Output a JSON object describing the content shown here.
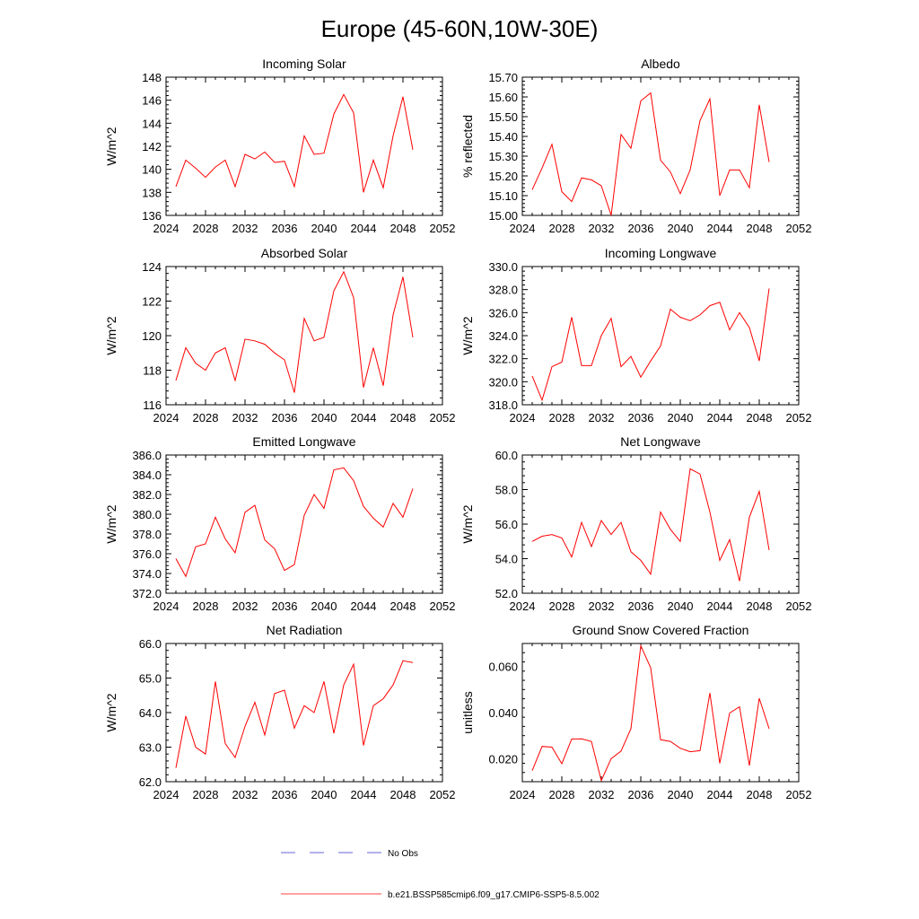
{
  "figure": {
    "title": "Europe (45-60N,10W-30E)"
  },
  "legend": {
    "items": [
      {
        "label": "No Obs",
        "color": "#3333cc",
        "style": "dashed"
      },
      {
        "label": "b.e21.BSSP585cmip6.f09_g17.CMIP6-SSP5-8.5.002",
        "color": "#ff0000",
        "style": "solid"
      }
    ]
  },
  "chart_data": [
    {
      "type": "line",
      "title": "Incoming Solar",
      "ylabel": "W/m^2",
      "xlim": [
        2024,
        2052
      ],
      "ylim": [
        136,
        148
      ],
      "xticks": [
        "2024",
        "2028",
        "2032",
        "2036",
        "2040",
        "2044",
        "2048",
        "2052"
      ],
      "yticks": [
        "136",
        "138",
        "140",
        "142",
        "144",
        "146",
        "148"
      ],
      "x": [
        2025,
        2026,
        2027,
        2028,
        2029,
        2030,
        2031,
        2032,
        2033,
        2034,
        2035,
        2036,
        2037,
        2038,
        2039,
        2040,
        2041,
        2042,
        2043,
        2044,
        2045,
        2046,
        2047,
        2048,
        2049
      ],
      "series": [
        {
          "name": "b.e21.BSSP585cmip6.f09_g17.CMIP6-SSP5-8.5.002",
          "color": "#ff0000",
          "values": [
            138.5,
            140.8,
            140.1,
            139.3,
            140.2,
            140.8,
            138.5,
            141.3,
            140.9,
            141.5,
            140.6,
            140.7,
            138.5,
            142.9,
            141.3,
            141.4,
            144.8,
            146.5,
            144.9,
            138.0,
            140.8,
            138.4,
            142.9,
            146.3,
            141.7
          ]
        }
      ]
    },
    {
      "type": "line",
      "title": "Albedo",
      "ylabel": "% reflected",
      "xlim": [
        2024,
        2052
      ],
      "ylim": [
        15.0,
        15.7
      ],
      "xticks": [
        "2024",
        "2028",
        "2032",
        "2036",
        "2040",
        "2044",
        "2048",
        "2052"
      ],
      "yticks": [
        "15.00",
        "15.10",
        "15.20",
        "15.30",
        "15.40",
        "15.50",
        "15.60",
        "15.70"
      ],
      "x": [
        2025,
        2026,
        2027,
        2028,
        2029,
        2030,
        2031,
        2032,
        2033,
        2034,
        2035,
        2036,
        2037,
        2038,
        2039,
        2040,
        2041,
        2042,
        2043,
        2044,
        2045,
        2046,
        2047,
        2048,
        2049
      ],
      "series": [
        {
          "name": "b.e21.BSSP585cmip6.f09_g17.CMIP6-SSP5-8.5.002",
          "color": "#ff0000",
          "values": [
            15.13,
            15.24,
            15.36,
            15.12,
            15.07,
            15.19,
            15.18,
            15.15,
            15.0,
            15.41,
            15.34,
            15.58,
            15.62,
            15.28,
            15.22,
            15.11,
            15.23,
            15.48,
            15.59,
            15.1,
            15.23,
            15.23,
            15.14,
            15.56,
            15.27
          ]
        }
      ]
    },
    {
      "type": "line",
      "title": "Absorbed Solar",
      "ylabel": "W/m^2",
      "xlim": [
        2024,
        2052
      ],
      "ylim": [
        116,
        124
      ],
      "xticks": [
        "2024",
        "2028",
        "2032",
        "2036",
        "2040",
        "2044",
        "2048",
        "2052"
      ],
      "yticks": [
        "116",
        "118",
        "120",
        "122",
        "124"
      ],
      "x": [
        2025,
        2026,
        2027,
        2028,
        2029,
        2030,
        2031,
        2032,
        2033,
        2034,
        2035,
        2036,
        2037,
        2038,
        2039,
        2040,
        2041,
        2042,
        2043,
        2044,
        2045,
        2046,
        2047,
        2048,
        2049
      ],
      "series": [
        {
          "name": "b.e21.BSSP585cmip6.f09_g17.CMIP6-SSP5-8.5.002",
          "color": "#ff0000",
          "values": [
            117.4,
            119.3,
            118.4,
            118.0,
            119.0,
            119.3,
            117.4,
            119.8,
            119.7,
            119.5,
            119.0,
            118.6,
            116.7,
            121.0,
            119.7,
            119.9,
            122.6,
            123.7,
            122.2,
            117.0,
            119.3,
            117.1,
            121.2,
            123.4,
            119.9
          ]
        }
      ]
    },
    {
      "type": "line",
      "title": "Incoming Longwave",
      "ylabel": "W/m^2",
      "xlim": [
        2024,
        2052
      ],
      "ylim": [
        318.0,
        330.0
      ],
      "xticks": [
        "2024",
        "2028",
        "2032",
        "2036",
        "2040",
        "2044",
        "2048",
        "2052"
      ],
      "yticks": [
        "318.0",
        "320.0",
        "322.0",
        "324.0",
        "326.0",
        "328.0",
        "330.0"
      ],
      "x": [
        2025,
        2026,
        2027,
        2028,
        2029,
        2030,
        2031,
        2032,
        2033,
        2034,
        2035,
        2036,
        2037,
        2038,
        2039,
        2040,
        2041,
        2042,
        2043,
        2044,
        2045,
        2046,
        2047,
        2048,
        2049
      ],
      "series": [
        {
          "name": "b.e21.BSSP585cmip6.f09_g17.CMIP6-SSP5-8.5.002",
          "color": "#ff0000",
          "values": [
            320.5,
            318.4,
            321.3,
            321.7,
            325.6,
            321.4,
            321.4,
            324.0,
            325.5,
            321.3,
            322.2,
            320.4,
            321.8,
            323.1,
            326.3,
            325.6,
            325.3,
            325.8,
            326.6,
            326.9,
            324.5,
            326.0,
            324.7,
            321.8,
            328.1
          ]
        }
      ]
    },
    {
      "type": "line",
      "title": "Emitted Longwave",
      "ylabel": "W/m^2",
      "xlim": [
        2024,
        2052
      ],
      "ylim": [
        372.0,
        386.0
      ],
      "xticks": [
        "2024",
        "2028",
        "2032",
        "2036",
        "2040",
        "2044",
        "2048",
        "2052"
      ],
      "yticks": [
        "372.0",
        "374.0",
        "376.0",
        "378.0",
        "380.0",
        "382.0",
        "384.0",
        "386.0"
      ],
      "x": [
        2025,
        2026,
        2027,
        2028,
        2029,
        2030,
        2031,
        2032,
        2033,
        2034,
        2035,
        2036,
        2037,
        2038,
        2039,
        2040,
        2041,
        2042,
        2043,
        2044,
        2045,
        2046,
        2047,
        2048,
        2049
      ],
      "series": [
        {
          "name": "b.e21.BSSP585cmip6.f09_g17.CMIP6-SSP5-8.5.002",
          "color": "#ff0000",
          "values": [
            375.5,
            373.7,
            376.7,
            377.0,
            379.7,
            377.5,
            376.1,
            380.2,
            380.9,
            377.4,
            376.5,
            374.3,
            374.9,
            379.9,
            382.0,
            380.6,
            384.5,
            384.7,
            383.4,
            380.8,
            379.6,
            378.7,
            381.1,
            379.7,
            382.6
          ]
        }
      ]
    },
    {
      "type": "line",
      "title": "Net Longwave",
      "ylabel": "W/m^2",
      "xlim": [
        2024,
        2052
      ],
      "ylim": [
        52.0,
        60.0
      ],
      "xticks": [
        "2024",
        "2028",
        "2032",
        "2036",
        "2040",
        "2044",
        "2048",
        "2052"
      ],
      "yticks": [
        "52.0",
        "54.0",
        "56.0",
        "58.0",
        "60.0"
      ],
      "x": [
        2025,
        2026,
        2027,
        2028,
        2029,
        2030,
        2031,
        2032,
        2033,
        2034,
        2035,
        2036,
        2037,
        2038,
        2039,
        2040,
        2041,
        2042,
        2043,
        2044,
        2045,
        2046,
        2047,
        2048,
        2049
      ],
      "series": [
        {
          "name": "b.e21.BSSP585cmip6.f09_g17.CMIP6-SSP5-8.5.002",
          "color": "#ff0000",
          "values": [
            55.0,
            55.3,
            55.4,
            55.2,
            54.1,
            56.1,
            54.7,
            56.2,
            55.4,
            56.1,
            54.4,
            53.9,
            53.1,
            56.7,
            55.7,
            55.0,
            59.2,
            58.9,
            56.7,
            53.9,
            55.1,
            52.7,
            56.4,
            57.9,
            54.5
          ]
        }
      ]
    },
    {
      "type": "line",
      "title": "Net Radiation",
      "ylabel": "W/m^2",
      "xlim": [
        2024,
        2052
      ],
      "ylim": [
        62.0,
        66.0
      ],
      "xticks": [
        "2024",
        "2028",
        "2032",
        "2036",
        "2040",
        "2044",
        "2048",
        "2052"
      ],
      "yticks": [
        "62.0",
        "63.0",
        "64.0",
        "65.0",
        "66.0"
      ],
      "x": [
        2025,
        2026,
        2027,
        2028,
        2029,
        2030,
        2031,
        2032,
        2033,
        2034,
        2035,
        2036,
        2037,
        2038,
        2039,
        2040,
        2041,
        2042,
        2043,
        2044,
        2045,
        2046,
        2047,
        2048,
        2049
      ],
      "series": [
        {
          "name": "b.e21.BSSP585cmip6.f09_g17.CMIP6-SSP5-8.5.002",
          "color": "#ff0000",
          "values": [
            62.4,
            63.9,
            63.0,
            62.8,
            64.9,
            63.1,
            62.7,
            63.6,
            64.3,
            63.35,
            64.55,
            64.65,
            63.55,
            64.2,
            64.0,
            64.9,
            63.4,
            64.8,
            65.4,
            63.05,
            64.2,
            64.4,
            64.8,
            65.5,
            65.45
          ]
        }
      ]
    },
    {
      "type": "line",
      "title": "Ground Snow Covered Fraction",
      "ylabel": "unitless",
      "xlim": [
        2024,
        2052
      ],
      "ylim": [
        0.01,
        0.07
      ],
      "xticks": [
        "2024",
        "2028",
        "2032",
        "2036",
        "2040",
        "2044",
        "2048",
        "2052"
      ],
      "yticks": [
        "0.020",
        "0.040",
        "0.060"
      ],
      "ytick_values": [
        0.02,
        0.04,
        0.06
      ],
      "x": [
        2025,
        2026,
        2027,
        2028,
        2029,
        2030,
        2031,
        2032,
        2033,
        2034,
        2035,
        2036,
        2037,
        2038,
        2039,
        2040,
        2041,
        2042,
        2043,
        2044,
        2045,
        2046,
        2047,
        2048,
        2049
      ],
      "series": [
        {
          "name": "b.e21.BSSP585cmip6.f09_g17.CMIP6-SSP5-8.5.002",
          "color": "#ff0000",
          "values": [
            0.0148,
            0.0253,
            0.025,
            0.0178,
            0.0285,
            0.0286,
            0.0275,
            0.0105,
            0.02,
            0.0233,
            0.033,
            0.069,
            0.0595,
            0.0282,
            0.0275,
            0.0245,
            0.023,
            0.0235,
            0.0485,
            0.018,
            0.0398,
            0.0425,
            0.017,
            0.0462,
            0.033
          ]
        }
      ]
    }
  ]
}
